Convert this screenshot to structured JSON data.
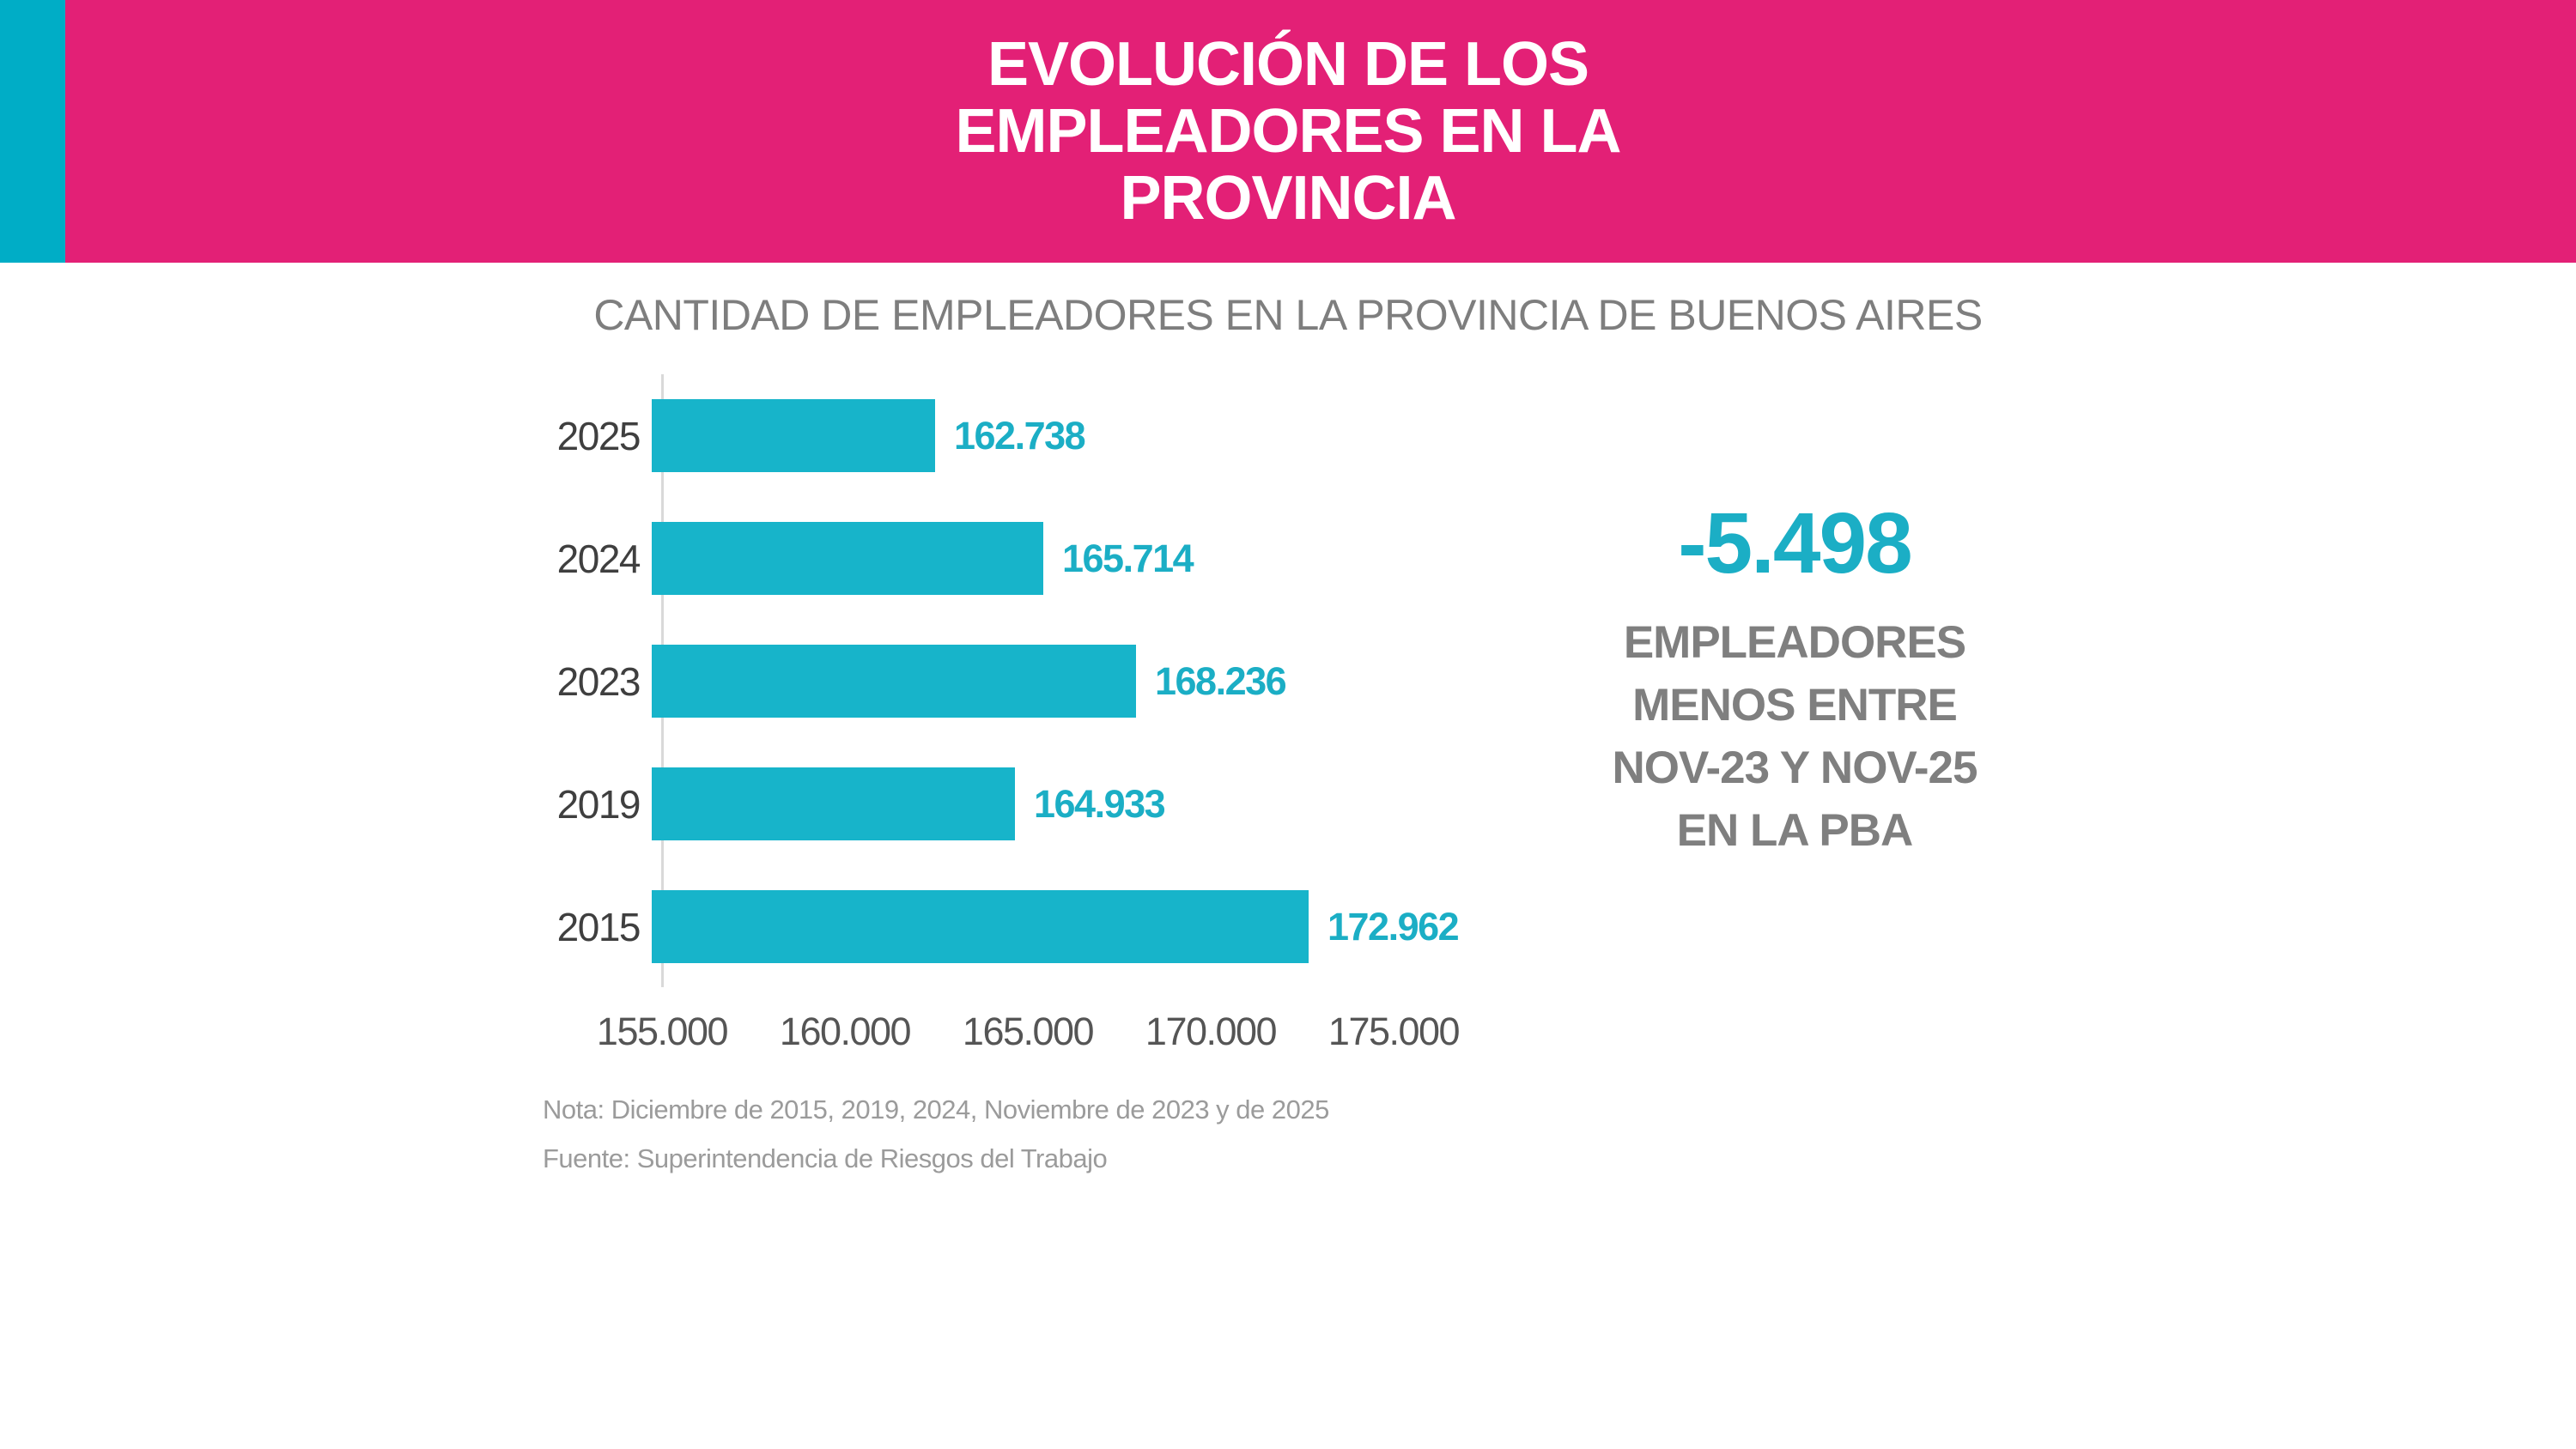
{
  "header": {
    "title_lines": [
      "EVOLUCIÓN DE LOS",
      "EMPLEADORES EN LA",
      "PROVINCIA"
    ]
  },
  "chart_data": {
    "type": "bar",
    "orientation": "horizontal",
    "title": "CANTIDAD DE EMPLEADORES EN LA PROVINCIA DE BUENOS AIRES",
    "categories": [
      "2025",
      "2024",
      "2023",
      "2019",
      "2015"
    ],
    "values": [
      162738,
      165714,
      168236,
      164933,
      172962
    ],
    "value_labels": [
      "162.738",
      "165.714",
      "168.236",
      "164.933",
      "172.962"
    ],
    "x_tick_labels": [
      "155.000",
      "160.000",
      "165.000",
      "170.000",
      "175.000"
    ],
    "x_tick_values": [
      155000,
      160000,
      165000,
      170000,
      175000
    ],
    "xlim": [
      155000,
      175900
    ],
    "grid": false,
    "legend": false,
    "bar_color": "#17B4CA"
  },
  "callout": {
    "value": "-5.498",
    "lines": [
      "EMPLEADORES",
      "MENOS ENTRE",
      "NOV-23 Y NOV-25",
      "EN LA PBA"
    ]
  },
  "notes": {
    "note": "Nota: Diciembre de 2015, 2019, 2024, Noviembre de 2023  y de 2025",
    "source": "Fuente: Superintendencia de Riesgos del Trabajo"
  },
  "colors": {
    "header_pink": "#E32076",
    "header_accent_teal": "#00ADC6",
    "bar_teal": "#17B4CA",
    "accent_text_teal": "#1BAEC5",
    "callout_gray": "#7F7F7F",
    "subtitle_gray": "#7E7E7E"
  }
}
